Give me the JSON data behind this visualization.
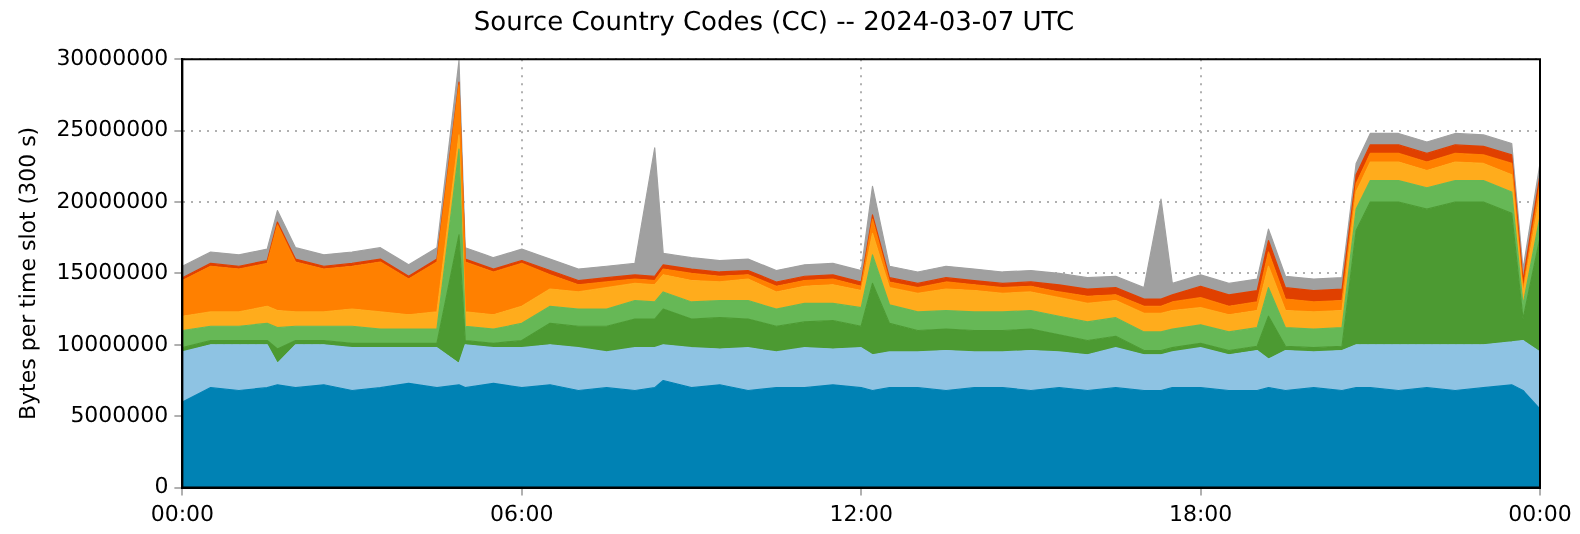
{
  "chart_data": {
    "type": "area",
    "title": "Source Country Codes (CC) -- 2024-03-07 UTC",
    "ylabel": "Bytes per time slot (300 s)",
    "stacked": true,
    "grid": true,
    "x": [
      0,
      0.5,
      1,
      1.5,
      1.68,
      2,
      2.5,
      3,
      3.5,
      4,
      4.5,
      4.89,
      5,
      5.5,
      6,
      6.5,
      7,
      7.5,
      8,
      8.35,
      8.5,
      9,
      9.5,
      10,
      10.5,
      11,
      11.5,
      12,
      12.2,
      12.5,
      13,
      13.5,
      14,
      14.5,
      15,
      15.5,
      16,
      16.5,
      17,
      17.3,
      17.5,
      18,
      18.5,
      19,
      19.2,
      19.5,
      20,
      20.5,
      20.75,
      21,
      21.5,
      22,
      22.5,
      23,
      23.5,
      23.7,
      24
    ],
    "xlim": [
      0,
      24
    ],
    "xticks": [
      {
        "value": 0,
        "label": "00:00"
      },
      {
        "value": 6,
        "label": "06:00"
      },
      {
        "value": 12,
        "label": "12:00"
      },
      {
        "value": 18,
        "label": "18:00"
      },
      {
        "value": 24,
        "label": "00:00"
      }
    ],
    "ylim": [
      0,
      30000000
    ],
    "yticks": [
      0,
      5000000,
      10000000,
      15000000,
      20000000,
      25000000,
      30000000
    ],
    "series": [
      {
        "color": "#0082b4",
        "values": [
          6000000,
          7000000,
          6800000,
          7000000,
          7200000,
          7000000,
          7200000,
          6800000,
          7000000,
          7300000,
          7000000,
          7200000,
          7000000,
          7300000,
          7000000,
          7200000,
          6800000,
          7000000,
          6800000,
          7000000,
          7500000,
          7000000,
          7200000,
          6800000,
          7000000,
          7000000,
          7200000,
          7000000,
          6800000,
          7000000,
          7000000,
          6800000,
          7000000,
          7000000,
          6800000,
          7000000,
          6800000,
          7000000,
          6800000,
          6800000,
          7000000,
          7000000,
          6800000,
          6800000,
          7000000,
          6800000,
          7000000,
          6800000,
          7000000,
          7000000,
          6800000,
          7000000,
          6800000,
          7000000,
          7200000,
          6800000,
          5500000
        ]
      },
      {
        "color": "#8ec3e3",
        "values": [
          3500000,
          3000000,
          3200000,
          3000000,
          1500000,
          3000000,
          2800000,
          3000000,
          2800000,
          2500000,
          2800000,
          1500000,
          3000000,
          2500000,
          2800000,
          2800000,
          3000000,
          2500000,
          3000000,
          2800000,
          2500000,
          2800000,
          2500000,
          3000000,
          2500000,
          2800000,
          2500000,
          2800000,
          2500000,
          2500000,
          2500000,
          2800000,
          2500000,
          2500000,
          2800000,
          2500000,
          2500000,
          2800000,
          2500000,
          2500000,
          2500000,
          2800000,
          2500000,
          2800000,
          2000000,
          2800000,
          2500000,
          2800000,
          3000000,
          3000000,
          3200000,
          3000000,
          3200000,
          3000000,
          3000000,
          3500000,
          4000000
        ]
      },
      {
        "color": "#4c9a32",
        "values": [
          300000,
          300000,
          300000,
          300000,
          1000000,
          300000,
          300000,
          300000,
          300000,
          300000,
          300000,
          9000000,
          300000,
          300000,
          500000,
          1500000,
          1500000,
          1800000,
          2000000,
          2000000,
          2500000,
          2000000,
          2200000,
          2000000,
          1800000,
          1800000,
          2000000,
          1500000,
          5000000,
          2000000,
          1500000,
          1500000,
          1500000,
          1500000,
          1500000,
          1200000,
          1000000,
          800000,
          300000,
          300000,
          300000,
          300000,
          300000,
          300000,
          3000000,
          300000,
          300000,
          300000,
          8000000,
          10000000,
          10000000,
          9500000,
          10000000,
          10000000,
          9000000,
          1500000,
          8000000
        ]
      },
      {
        "color": "#66b856",
        "values": [
          1200000,
          1000000,
          1000000,
          1200000,
          1500000,
          1000000,
          1000000,
          1200000,
          1000000,
          1000000,
          1000000,
          6000000,
          1000000,
          1000000,
          1200000,
          1200000,
          1200000,
          1200000,
          1300000,
          1200000,
          1200000,
          1200000,
          1200000,
          1300000,
          1200000,
          1300000,
          1200000,
          1300000,
          2000000,
          1300000,
          1300000,
          1300000,
          1300000,
          1300000,
          1300000,
          1300000,
          1300000,
          1300000,
          1300000,
          1300000,
          1300000,
          1300000,
          1300000,
          1300000,
          2000000,
          1300000,
          1300000,
          1300000,
          1500000,
          1500000,
          1500000,
          1500000,
          1500000,
          1500000,
          1500000,
          1000000,
          1500000
        ]
      },
      {
        "color": "#ffac1c",
        "values": [
          1000000,
          1000000,
          1000000,
          1200000,
          1200000,
          1000000,
          1000000,
          1200000,
          1200000,
          1000000,
          1200000,
          1000000,
          1000000,
          1000000,
          1200000,
          1200000,
          1200000,
          1500000,
          1200000,
          1200000,
          1200000,
          1500000,
          1300000,
          1500000,
          1200000,
          1200000,
          1300000,
          1200000,
          1500000,
          1200000,
          1300000,
          1500000,
          1500000,
          1300000,
          1300000,
          1300000,
          1300000,
          1200000,
          1300000,
          1300000,
          1300000,
          1200000,
          1200000,
          1200000,
          1500000,
          1200000,
          1200000,
          1200000,
          1200000,
          1300000,
          1300000,
          1200000,
          1300000,
          1200000,
          1200000,
          800000,
          1500000
        ]
      },
      {
        "color": "#ff8000",
        "values": [
          2500000,
          3200000,
          3000000,
          3000000,
          6000000,
          3500000,
          3000000,
          3000000,
          3500000,
          2500000,
          3500000,
          3500000,
          3500000,
          3000000,
          3000000,
          1000000,
          500000,
          400000,
          300000,
          300000,
          400000,
          500000,
          400000,
          300000,
          400000,
          400000,
          400000,
          300000,
          1000000,
          400000,
          400000,
          500000,
          400000,
          400000,
          400000,
          400000,
          500000,
          400000,
          500000,
          500000,
          600000,
          700000,
          600000,
          600000,
          1000000,
          800000,
          700000,
          700000,
          600000,
          600000,
          600000,
          600000,
          600000,
          600000,
          800000,
          300000,
          800000
        ]
      },
      {
        "color": "#e04000",
        "values": [
          200000,
          200000,
          200000,
          200000,
          200000,
          200000,
          200000,
          200000,
          200000,
          200000,
          200000,
          200000,
          200000,
          200000,
          200000,
          300000,
          300000,
          300000,
          300000,
          300000,
          300000,
          300000,
          300000,
          300000,
          300000,
          300000,
          300000,
          300000,
          300000,
          300000,
          300000,
          300000,
          300000,
          300000,
          300000,
          500000,
          500000,
          500000,
          500000,
          500000,
          500000,
          800000,
          800000,
          800000,
          800000,
          800000,
          800000,
          800000,
          600000,
          600000,
          600000,
          600000,
          600000,
          600000,
          600000,
          600000,
          600000
        ]
      },
      {
        "color": "#a0a0a0",
        "values": [
          800000,
          800000,
          800000,
          800000,
          800000,
          800000,
          800000,
          800000,
          800000,
          800000,
          800000,
          1500000,
          800000,
          800000,
          800000,
          800000,
          800000,
          800000,
          800000,
          9000000,
          800000,
          800000,
          800000,
          800000,
          800000,
          800000,
          800000,
          800000,
          2000000,
          800000,
          800000,
          800000,
          800000,
          800000,
          800000,
          800000,
          800000,
          800000,
          800000,
          7000000,
          800000,
          800000,
          800000,
          800000,
          800000,
          800000,
          800000,
          800000,
          800000,
          800000,
          800000,
          800000,
          800000,
          800000,
          800000,
          800000,
          800000
        ]
      }
    ]
  }
}
